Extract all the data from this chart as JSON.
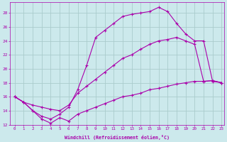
{
  "xlabel": "Windchill (Refroidissement éolien,°C)",
  "ylabel": "",
  "xlim": [
    -0.5,
    23.3
  ],
  "ylim": [
    12,
    29.5
  ],
  "xticks": [
    0,
    1,
    2,
    3,
    4,
    5,
    6,
    7,
    8,
    9,
    10,
    11,
    12,
    13,
    14,
    15,
    16,
    17,
    18,
    19,
    20,
    21,
    22,
    23
  ],
  "yticks": [
    12,
    14,
    16,
    18,
    20,
    22,
    24,
    26,
    28
  ],
  "bg_color": "#cce9ec",
  "line_color": "#aa00aa",
  "grid_color": "#aacccc",
  "curve1_x": [
    0,
    1,
    2,
    3,
    4,
    5,
    6,
    7,
    8,
    9,
    10,
    11,
    12,
    13,
    14,
    15,
    16,
    17,
    18,
    19,
    20,
    21,
    22,
    23
  ],
  "curve1_y": [
    16.0,
    15.2,
    14.0,
    13.2,
    12.8,
    13.5,
    14.5,
    17.0,
    20.5,
    24.5,
    25.5,
    26.5,
    27.5,
    27.8,
    28.0,
    28.2,
    28.8,
    28.2,
    26.5,
    25.0,
    24.0,
    24.0,
    18.2,
    18.0
  ],
  "curve2_x": [
    0,
    1,
    2,
    3,
    4,
    5,
    6,
    7,
    8,
    9,
    10,
    11,
    12,
    13,
    14,
    15,
    16,
    17,
    18,
    19,
    20,
    21,
    22,
    23
  ],
  "curve2_y": [
    16.0,
    15.2,
    14.8,
    14.5,
    14.2,
    14.0,
    14.8,
    16.5,
    17.5,
    18.5,
    19.5,
    20.5,
    21.5,
    22.0,
    22.8,
    23.5,
    24.0,
    24.2,
    24.5,
    24.0,
    23.5,
    18.2,
    18.3,
    18.0
  ],
  "curve3_x": [
    0,
    1,
    2,
    3,
    4,
    5,
    6,
    7,
    8,
    9,
    10,
    11,
    12,
    13,
    14,
    15,
    16,
    17,
    18,
    19,
    20,
    21,
    22,
    23
  ],
  "curve3_y": [
    16.0,
    15.2,
    14.0,
    12.8,
    12.2,
    13.0,
    12.5,
    13.5,
    14.0,
    14.5,
    15.0,
    15.5,
    16.0,
    16.2,
    16.5,
    17.0,
    17.2,
    17.5,
    17.8,
    18.0,
    18.2,
    18.2,
    18.3,
    18.0
  ]
}
